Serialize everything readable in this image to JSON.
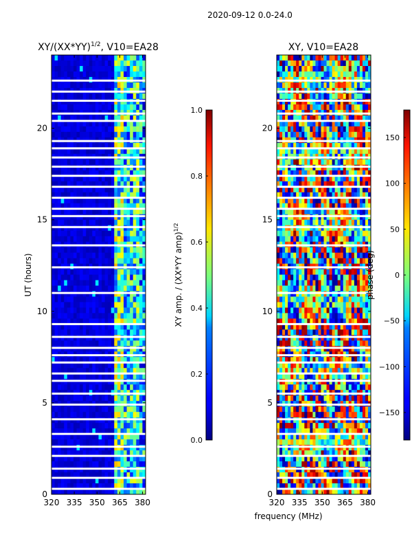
{
  "suptitle": "2020-09-12 0.0-24.0",
  "shared_xlabel": "frequency (MHz)",
  "chart_data": [
    {
      "type": "heatmap",
      "title": "XY/(XX*YY)",
      "title_exponent": "1/2",
      "title_suffix": ", V10=EA28",
      "xlabel": "",
      "ylabel": "UT (hours)",
      "xlim": [
        320,
        382
      ],
      "ylim": [
        0,
        24
      ],
      "xticks": [
        "320",
        "335",
        "350",
        "365",
        "380"
      ],
      "xtick_values": [
        320,
        335,
        350,
        365,
        380
      ],
      "yticks": [
        "0",
        "5",
        "10",
        "15",
        "20"
      ],
      "ytick_values": [
        0,
        5,
        10,
        15,
        20
      ],
      "colorbar": {
        "label": "XY amp. / (XX*YY amp)",
        "label_exponent": "1/2",
        "range": [
          0,
          1
        ],
        "ticks": [
          "0.0",
          "0.2",
          "0.4",
          "0.6",
          "0.8",
          "1.0"
        ],
        "tick_values": [
          0,
          0.2,
          0.4,
          0.6,
          0.8,
          1.0
        ]
      },
      "bands": [
        {
          "f0": 320,
          "f1": 362,
          "level": 0.05
        },
        {
          "f0": 362,
          "f1": 368,
          "level": 0.45
        },
        {
          "f0": 368,
          "f1": 373,
          "level": 0.35
        },
        {
          "f0": 373,
          "f1": 377,
          "level": 0.4
        },
        {
          "f0": 377,
          "f1": 382,
          "level": 0.3
        }
      ],
      "blank_rows_hours": [
        0.3,
        0.9,
        1.4,
        2.1,
        2.6,
        3.3,
        4.1,
        4.9,
        5.5,
        6.2,
        6.6,
        7.2,
        7.6,
        8.0,
        8.6,
        9.3,
        11.0,
        12.4,
        13.6,
        14.6,
        15.2,
        15.6,
        16.2,
        16.8,
        17.4,
        17.9,
        18.4,
        18.9,
        19.3,
        20.4,
        20.8,
        21.5,
        22.0,
        22.6
      ]
    },
    {
      "type": "heatmap",
      "title": "XY, V10=EA28",
      "xlabel": "frequency (MHz)",
      "ylabel": "",
      "xlim": [
        320,
        382
      ],
      "ylim": [
        0,
        24
      ],
      "xticks": [
        "320",
        "335",
        "350",
        "365",
        "380"
      ],
      "xtick_values": [
        320,
        335,
        350,
        365,
        380
      ],
      "yticks": [
        "0",
        "5",
        "10",
        "15",
        "20"
      ],
      "ytick_values": [
        0,
        5,
        10,
        15,
        20
      ],
      "colorbar": {
        "label": "phase (deg)",
        "range": [
          -180,
          180
        ],
        "ticks": [
          "150",
          "100",
          "50",
          "0",
          "−50",
          "−100",
          "−150"
        ],
        "tick_values": [
          150,
          100,
          50,
          0,
          -50,
          -100,
          -150
        ]
      },
      "blank_rows_hours": [
        0.3,
        0.9,
        1.4,
        2.1,
        2.6,
        3.3,
        4.1,
        4.9,
        5.5,
        6.2,
        6.6,
        7.2,
        7.6,
        8.0,
        8.6,
        9.3,
        11.0,
        12.4,
        13.6,
        14.6,
        15.2,
        15.6,
        16.2,
        16.8,
        17.4,
        17.9,
        18.4,
        18.9,
        19.3,
        20.4,
        20.8,
        21.5,
        22.0,
        22.6
      ]
    }
  ]
}
